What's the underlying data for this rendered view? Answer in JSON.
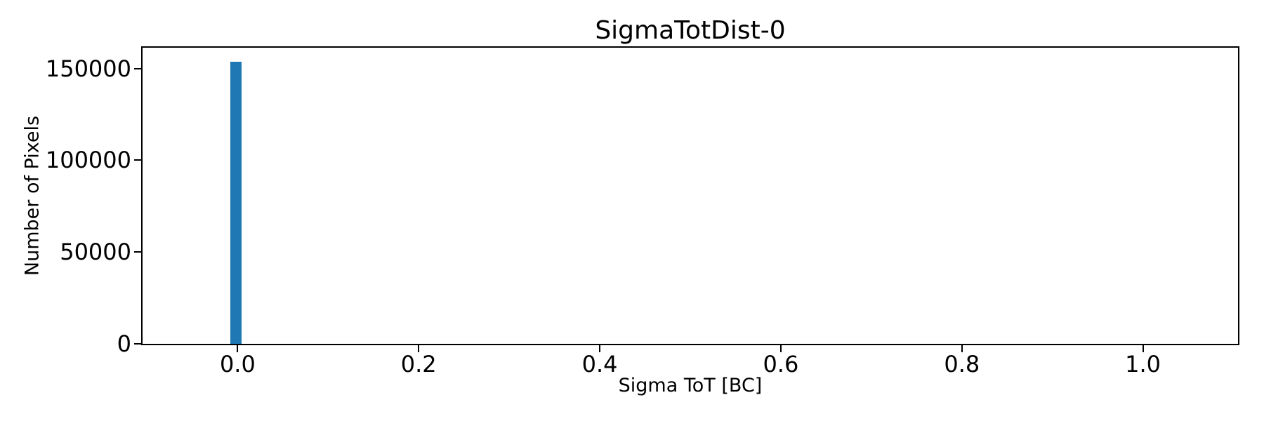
{
  "chart_data": {
    "type": "bar",
    "subtype": "histogram",
    "title": "SigmaTotDist-0",
    "xlabel": "Sigma ToT [BC]",
    "ylabel": "Number of Pixels",
    "xlim": [
      -0.105,
      1.105
    ],
    "ylim": [
      0,
      161280
    ],
    "x_ticks": [
      0.0,
      0.2,
      0.4,
      0.6,
      0.8,
      1.0
    ],
    "x_tick_labels": [
      "0.0",
      "0.2",
      "0.4",
      "0.6",
      "0.8",
      "1.0"
    ],
    "y_ticks": [
      0,
      50000,
      100000,
      150000
    ],
    "y_tick_labels": [
      "0",
      "50000",
      "100000",
      "150000"
    ],
    "series": [
      {
        "name": "SigmaTotDist-0",
        "bins": [
          {
            "center": -0.002,
            "width": 0.0124,
            "count": 153600
          }
        ]
      }
    ],
    "bar_color": "#1f77b4",
    "axis_color": "#000000",
    "text_color": "#000000",
    "background_color": "#ffffff",
    "grid": false,
    "legend": null
  }
}
